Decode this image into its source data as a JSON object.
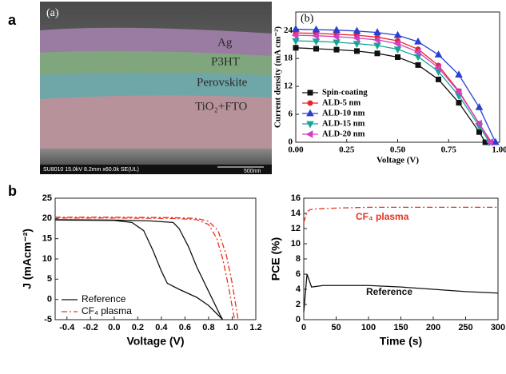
{
  "figure": {
    "labels": [
      "a",
      "b"
    ],
    "image": {
      "panel_label": "(a)",
      "layers": [
        "Ag",
        "P3HT",
        "Perovskite",
        "TiO₂+FTO"
      ],
      "info": "SU8010 15.0kV 8.2mm x60.0k SE(UL)",
      "scale": "500nm"
    }
  },
  "chart_data": [
    {
      "type": "line",
      "panel_label": "(b)",
      "xlabel": "Voltage (V)",
      "ylabel": "Current density (mA cm⁻²)",
      "xlim": [
        0,
        1
      ],
      "ylim": [
        0,
        28
      ],
      "xticks": [
        {
          "value": 0,
          "label": "0.00"
        },
        {
          "value": 0.25,
          "label": "0.25"
        },
        {
          "value": 0.5,
          "label": "0.50"
        },
        {
          "value": 0.75,
          "label": "0.75"
        },
        {
          "value": 1,
          "label": "1.00"
        }
      ],
      "yticks": [
        0,
        6,
        12,
        18,
        24
      ],
      "legend": "lower left",
      "series": [
        {
          "name": "Spin-coating",
          "color": "#111111",
          "marker": "square",
          "x": [
            0,
            0.1,
            0.2,
            0.3,
            0.4,
            0.5,
            0.6,
            0.7,
            0.8,
            0.9,
            0.93
          ],
          "values": [
            20.3,
            20.1,
            19.9,
            19.6,
            19.1,
            18.3,
            16.6,
            13.5,
            8.5,
            2.2,
            0
          ]
        },
        {
          "name": "ALD-5 nm",
          "color": "#e8262a",
          "marker": "circle",
          "x": [
            0,
            0.1,
            0.2,
            0.3,
            0.4,
            0.5,
            0.6,
            0.7,
            0.8,
            0.9,
            0.96
          ],
          "values": [
            23.5,
            23.4,
            23.2,
            23.0,
            22.6,
            21.8,
            20.0,
            16.5,
            11,
            4,
            0
          ]
        },
        {
          "name": "ALD-10 nm",
          "color": "#2a3fd0",
          "marker": "triangle-up",
          "x": [
            0,
            0.1,
            0.2,
            0.3,
            0.4,
            0.5,
            0.6,
            0.7,
            0.8,
            0.9,
            0.98
          ],
          "values": [
            24.3,
            24.2,
            24.1,
            23.9,
            23.6,
            23.0,
            21.6,
            18.8,
            14.5,
            7.5,
            0
          ]
        },
        {
          "name": "ALD-15 nm",
          "color": "#16a596",
          "marker": "triangle-down",
          "x": [
            0,
            0.1,
            0.2,
            0.3,
            0.4,
            0.5,
            0.6,
            0.7,
            0.8,
            0.9,
            0.95
          ],
          "values": [
            21.8,
            21.7,
            21.5,
            21.2,
            20.8,
            20.0,
            18.4,
            15.2,
            10,
            3.5,
            0
          ]
        },
        {
          "name": "ALD-20 nm",
          "color": "#d03fc4",
          "marker": "triangle-left",
          "x": [
            0,
            0.1,
            0.2,
            0.3,
            0.4,
            0.5,
            0.6,
            0.7,
            0.8,
            0.9,
            0.955
          ],
          "values": [
            23.0,
            22.9,
            22.7,
            22.4,
            22.0,
            21.2,
            19.4,
            16.0,
            10.8,
            4,
            0
          ]
        }
      ]
    },
    {
      "type": "line",
      "xlabel": "Voltage (V)",
      "ylabel": "J (mAcm⁻²)",
      "xlim": [
        -0.5,
        1.2
      ],
      "ylim": [
        -5,
        25
      ],
      "xticks": [
        -0.4,
        -0.2,
        {
          "value": 0,
          "label": "0.0"
        },
        0.2,
        0.4,
        0.6,
        0.8,
        {
          "value": 1,
          "label": "1.0"
        },
        1.2
      ],
      "yticks": [
        -5,
        0,
        5,
        10,
        15,
        20,
        25
      ],
      "legend": "lower left",
      "series": [
        {
          "name": "Reference",
          "color": "#111111",
          "dash": "solid",
          "x": [
            -0.5,
            0,
            0.3,
            0.5,
            0.55,
            0.63,
            0.7,
            0.8,
            0.9,
            0.92,
            0.8,
            0.7,
            0.55,
            0.45,
            0.4,
            0.33,
            0.25,
            0.15,
            0,
            -0.5
          ],
          "values": [
            19.7,
            19.6,
            19.4,
            19.0,
            17.5,
            13,
            8,
            2,
            -4,
            -5,
            -1.5,
            0.5,
            2.5,
            4,
            7,
            12,
            17,
            19,
            19.5,
            19.6
          ]
        },
        {
          "name": "CF₄ plasma",
          "color": "#e8321e",
          "dash": "dash-dot",
          "x": [
            -0.5,
            0,
            0.5,
            0.7,
            0.8,
            0.88,
            0.95,
            1.0,
            1.05,
            1.02,
            0.97,
            0.92,
            0.87,
            0.8,
            0.7,
            0.5,
            0,
            -0.5
          ],
          "values": [
            20.3,
            20.3,
            20.2,
            20,
            19.3,
            17,
            11,
            4,
            -5,
            -5,
            3,
            10,
            15,
            18.5,
            19.7,
            20,
            20.1,
            20.1
          ]
        }
      ]
    },
    {
      "type": "line",
      "xlabel": "Time (s)",
      "ylabel": "PCE (%)",
      "xlim": [
        0,
        300
      ],
      "ylim": [
        0,
        16
      ],
      "xticks": [
        0,
        50,
        100,
        150,
        200,
        250,
        300
      ],
      "yticks": [
        0,
        2,
        4,
        6,
        8,
        10,
        12,
        14,
        16
      ],
      "annotations": [
        {
          "text": "CF₄ plasma",
          "color": "#e8321e"
        },
        {
          "text": "Reference",
          "color": "#111111"
        }
      ],
      "series": [
        {
          "name": "CF₄ plasma",
          "color": "#e8321e",
          "dash": "dash-dot",
          "x": [
            0,
            5,
            10,
            20,
            50,
            100,
            150,
            200,
            250,
            300
          ],
          "values": [
            12.8,
            14.2,
            14.5,
            14.6,
            14.7,
            14.8,
            14.8,
            14.8,
            14.8,
            14.8
          ]
        },
        {
          "name": "Reference",
          "color": "#111111",
          "dash": "solid",
          "x": [
            0,
            5,
            12,
            30,
            100,
            150,
            200,
            250,
            300
          ],
          "values": [
            1.0,
            6.0,
            4.3,
            4.5,
            4.5,
            4.3,
            4.0,
            3.7,
            3.5
          ]
        }
      ]
    }
  ]
}
